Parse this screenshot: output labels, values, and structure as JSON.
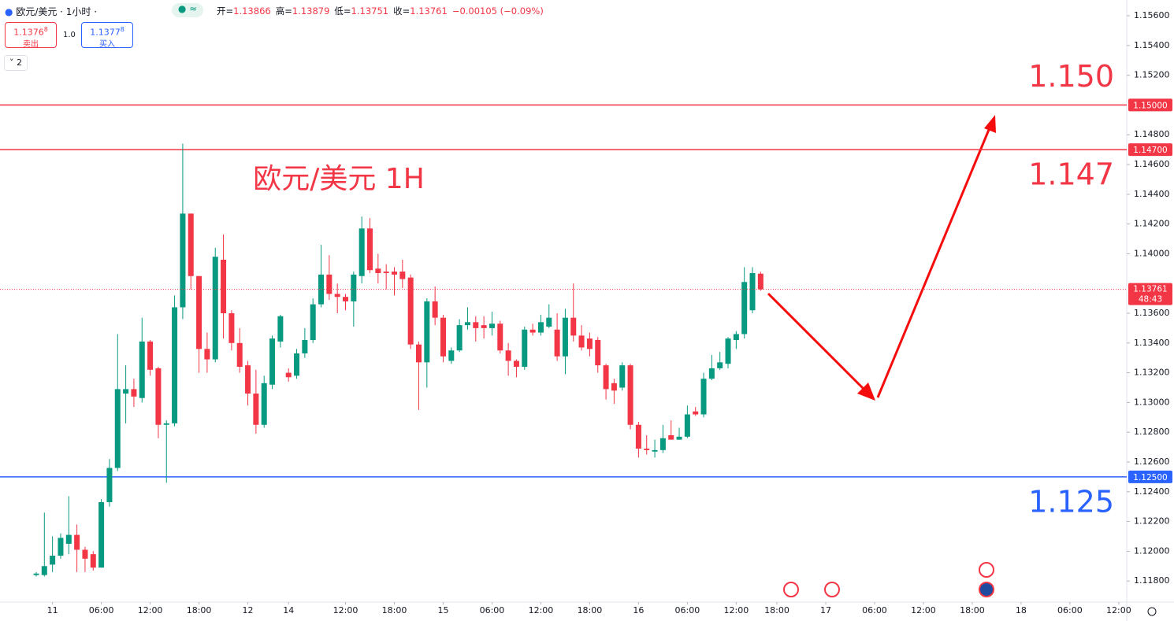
{
  "header": {
    "symbol": "欧元/美元 · 1小时 ·",
    "labels": [
      "开=",
      "高=",
      "低=",
      "收="
    ],
    "change": "−0.00105 (−0.09%)",
    "sell": {
      "main": "1.1376",
      "pip": "8",
      "label": "卖出"
    },
    "spread": "1.0",
    "buy": {
      "main": "1.1377",
      "pip": "8",
      "label": "买入"
    },
    "indicators": "2"
  },
  "chart_data": {
    "type": "candlestick",
    "title": "欧元/美元 1H",
    "up_color": "#089981",
    "down_color": "#f23645",
    "x": [
      0,
      1,
      2,
      3,
      4,
      5,
      6,
      7,
      8,
      9,
      10,
      11,
      12,
      13,
      14,
      15,
      16,
      17,
      18,
      19,
      20,
      21,
      22,
      23,
      24,
      25,
      26,
      27,
      28,
      29,
      30,
      31,
      32,
      33,
      34,
      35,
      36,
      37,
      38,
      39,
      40,
      41,
      42,
      43,
      44,
      45,
      46,
      47,
      48,
      49,
      50,
      51,
      52,
      53,
      54,
      55,
      56,
      57,
      58,
      59,
      60,
      61,
      62,
      63,
      64,
      65,
      66,
      67,
      68,
      69,
      70,
      71,
      72,
      73,
      74,
      75,
      76,
      77,
      78,
      79,
      80,
      81,
      82,
      83,
      84,
      85,
      86,
      87,
      88,
      89
    ],
    "open": [
      1.1184,
      1.1184,
      1.1191,
      1.1197,
      1.1205,
      1.1211,
      1.1201,
      1.1198,
      1.1189,
      1.1233,
      1.1256,
      1.1306,
      1.1309,
      1.1303,
      1.1341,
      1.1323,
      1.1285,
      1.1286,
      1.1364,
      1.1427,
      1.1385,
      1.1336,
      1.1329,
      1.1396,
      1.136,
      1.134,
      1.1325,
      1.1306,
      1.1285,
      1.1312,
      1.1341,
      1.132,
      1.1318,
      1.1333,
      1.1342,
      1.1366,
      1.1386,
      1.1373,
      1.1371,
      1.1368,
      1.1385,
      1.1417,
      1.139,
      1.1388,
      1.1388,
      1.1388,
      1.1384,
      1.1339,
      1.1327,
      1.1368,
      1.1357,
      1.1328,
      1.1335,
      1.1352,
      1.1354,
      1.1352,
      1.135,
      1.1353,
      1.1335,
      1.1328,
      1.1324,
      1.1349,
      1.1347,
      1.1351,
      1.1349,
      1.1331,
      1.1357,
      1.1345,
      1.1343,
      1.1342,
      1.1325,
      1.1313,
      1.131,
      1.1325,
      1.1285,
      1.1269,
      1.1267,
      1.1268,
      1.1278,
      1.1275,
      1.1277,
      1.1294,
      1.1292,
      1.1316,
      1.1323,
      1.1326,
      1.1342,
      1.1346,
      1.1362,
      1.13866
    ],
    "high": [
      1.1186,
      1.1226,
      1.121,
      1.1212,
      1.1237,
      1.1218,
      1.1203,
      1.12,
      1.1235,
      1.1262,
      1.1346,
      1.1325,
      1.1316,
      1.1357,
      1.1342,
      1.1324,
      1.1288,
      1.1372,
      1.1474,
      1.1427,
      1.1385,
      1.1347,
      1.1404,
      1.1413,
      1.1362,
      1.135,
      1.1328,
      1.1322,
      1.1318,
      1.1345,
      1.1359,
      1.1323,
      1.1336,
      1.135,
      1.137,
      1.1406,
      1.1399,
      1.138,
      1.1373,
      1.1388,
      1.1425,
      1.1424,
      1.14,
      1.1393,
      1.1391,
      1.1396,
      1.1386,
      1.1341,
      1.137,
      1.1378,
      1.1359,
      1.1337,
      1.1356,
      1.1364,
      1.1358,
      1.1358,
      1.1361,
      1.1355,
      1.134,
      1.1329,
      1.1351,
      1.1353,
      1.1359,
      1.1366,
      1.136,
      1.1363,
      1.138,
      1.1352,
      1.1347,
      1.1344,
      1.1326,
      1.1316,
      1.1327,
      1.1326,
      1.1287,
      1.1278,
      1.1275,
      1.1285,
      1.1288,
      1.1283,
      1.1298,
      1.1297,
      1.132,
      1.1332,
      1.1334,
      1.1344,
      1.1348,
      1.1391,
      1.1391,
      1.13879
    ],
    "low": [
      1.1183,
      1.1183,
      1.1186,
      1.1195,
      1.1198,
      1.1186,
      1.1186,
      1.1187,
      1.1189,
      1.123,
      1.1254,
      1.1286,
      1.1297,
      1.13,
      1.1318,
      1.1276,
      1.1246,
      1.1284,
      1.1356,
      1.1376,
      1.132,
      1.132,
      1.1327,
      1.1343,
      1.1335,
      1.132,
      1.1298,
      1.1279,
      1.1283,
      1.1309,
      1.1337,
      1.1314,
      1.1316,
      1.133,
      1.134,
      1.1364,
      1.1369,
      1.136,
      1.1362,
      1.1351,
      1.138,
      1.1387,
      1.138,
      1.1376,
      1.1372,
      1.1377,
      1.1336,
      1.1295,
      1.131,
      1.1352,
      1.1327,
      1.1326,
      1.1334,
      1.1349,
      1.1341,
      1.1343,
      1.1345,
      1.1333,
      1.1318,
      1.1317,
      1.1322,
      1.1345,
      1.1345,
      1.135,
      1.1328,
      1.1319,
      1.1341,
      1.1335,
      1.1331,
      1.132,
      1.1302,
      1.1299,
      1.1308,
      1.1282,
      1.1263,
      1.1265,
      1.1263,
      1.1266,
      1.1275,
      1.1275,
      1.1276,
      1.1291,
      1.129,
      1.1315,
      1.1322,
      1.1323,
      1.1336,
      1.1343,
      1.136,
      1.13751
    ],
    "close": [
      1.1185,
      1.119,
      1.1197,
      1.1209,
      1.1211,
      1.1201,
      1.1195,
      1.1189,
      1.1233,
      1.1256,
      1.1309,
      1.1309,
      1.1304,
      1.1341,
      1.1322,
      1.1285,
      1.1286,
      1.1364,
      1.1427,
      1.1385,
      1.1336,
      1.1329,
      1.1398,
      1.136,
      1.134,
      1.1324,
      1.1306,
      1.1285,
      1.1313,
      1.1343,
      1.1358,
      1.1317,
      1.1333,
      1.1342,
      1.1366,
      1.1386,
      1.1373,
      1.1371,
      1.1368,
      1.1386,
      1.1417,
      1.1389,
      1.1387,
      1.1387,
      1.1386,
      1.1383,
      1.1339,
      1.1327,
      1.1368,
      1.1357,
      1.1331,
      1.1335,
      1.1352,
      1.1354,
      1.135,
      1.135,
      1.1353,
      1.1335,
      1.1328,
      1.1324,
      1.1349,
      1.1347,
      1.1354,
      1.1357,
      1.1331,
      1.1357,
      1.1345,
      1.1337,
      1.1336,
      1.1325,
      1.1309,
      1.1308,
      1.1325,
      1.1285,
      1.1269,
      1.1268,
      1.1268,
      1.1276,
      1.1275,
      1.1277,
      1.1292,
      1.1292,
      1.1316,
      1.1323,
      1.1327,
      1.1343,
      1.1346,
      1.1381,
      1.1387,
      1.13761
    ],
    "countdown": "48:43",
    "xlim": [
      -4.45,
      133.98
    ],
    "ylim": [
      1.11658,
      1.15706
    ],
    "xticks": [
      {
        "value": 2,
        "label": "11"
      },
      {
        "value": 8,
        "label": "06:00"
      },
      {
        "value": 14,
        "label": "12:00"
      },
      {
        "value": 20,
        "label": "18:00"
      },
      {
        "value": 26,
        "label": "12"
      },
      {
        "value": 31,
        "label": "14"
      },
      {
        "value": 38,
        "label": "12:00"
      },
      {
        "value": 44,
        "label": "18:00"
      },
      {
        "value": 50,
        "label": "15"
      },
      {
        "value": 56,
        "label": "06:00"
      },
      {
        "value": 62,
        "label": "12:00"
      },
      {
        "value": 68,
        "label": "18:00"
      },
      {
        "value": 74,
        "label": "16"
      },
      {
        "value": 80,
        "label": "06:00"
      },
      {
        "value": 86,
        "label": "12:00"
      },
      {
        "value": 91,
        "label": "18:00"
      },
      {
        "value": 97,
        "label": "17"
      },
      {
        "value": 103,
        "label": "06:00"
      },
      {
        "value": 109,
        "label": "12:00"
      },
      {
        "value": 115,
        "label": "18:00"
      },
      {
        "value": 121,
        "label": "18"
      },
      {
        "value": 127,
        "label": "06:00"
      },
      {
        "value": 133,
        "label": "12:00"
      }
    ],
    "yticks": [
      {
        "value": 1.156,
        "label": "1.15600"
      },
      {
        "value": 1.154,
        "label": "1.15400"
      },
      {
        "value": 1.152,
        "label": "1.15200"
      },
      {
        "value": 1.148,
        "label": "1.14800"
      },
      {
        "value": 1.146,
        "label": "1.14600"
      },
      {
        "value": 1.144,
        "label": "1.14400"
      },
      {
        "value": 1.142,
        "label": "1.14200"
      },
      {
        "value": 1.14,
        "label": "1.14000"
      },
      {
        "value": 1.136,
        "label": "1.13600"
      },
      {
        "value": 1.134,
        "label": "1.13400"
      },
      {
        "value": 1.132,
        "label": "1.13200"
      },
      {
        "value": 1.13,
        "label": "1.13000"
      },
      {
        "value": 1.128,
        "label": "1.12800"
      },
      {
        "value": 1.126,
        "label": "1.12600"
      },
      {
        "value": 1.124,
        "label": "1.12400"
      },
      {
        "value": 1.122,
        "label": "1.12200"
      },
      {
        "value": 1.12,
        "label": "1.12000"
      },
      {
        "value": 1.118,
        "label": "1.11800"
      }
    ],
    "hlines": [
      {
        "value": 1.15,
        "tag": "1.15000",
        "text": "1.150",
        "color": "#f23645"
      },
      {
        "value": 1.147,
        "tag": "1.14700",
        "text": "1.147",
        "color": "#f23645"
      },
      {
        "value": 1.125,
        "tag": "1.12500",
        "text": "1.125",
        "color": "#2962ff"
      }
    ]
  }
}
